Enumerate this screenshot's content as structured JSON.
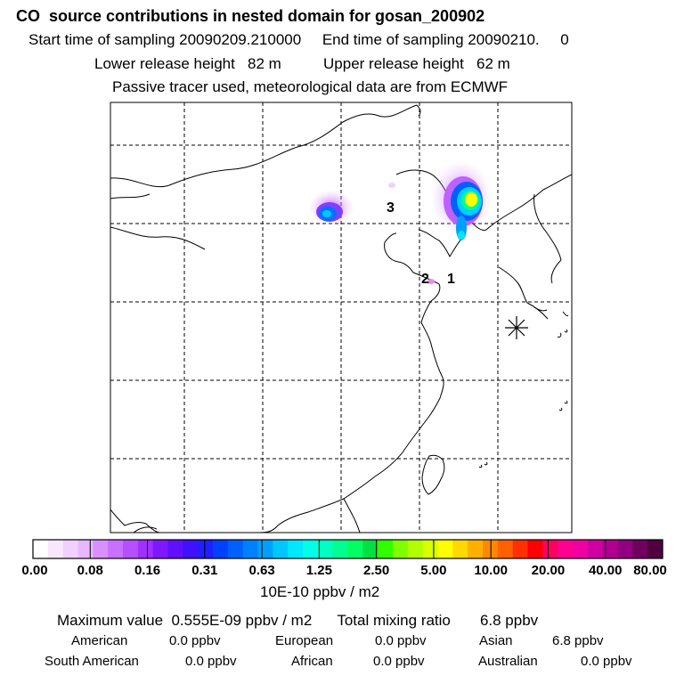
{
  "header": {
    "title": "CO  source contributions in nested domain for gosan_200902",
    "sampling": "Start time of sampling 20090209.210000     End time of sampling 20090210.     0",
    "release": "Lower release height   82 m          Upper release height   62 m",
    "tracer": "Passive tracer used, meteorological data are from ECMWF"
  },
  "map": {
    "labels": [
      "3",
      "2",
      "1"
    ],
    "receptor_icon": "asterisk-receptor-marker"
  },
  "colorbar": {
    "tick_labels": [
      "0.00",
      "0.08",
      "0.16",
      "0.31",
      "0.63",
      "1.25",
      "2.50",
      "5.00",
      "10.00",
      "20.00",
      "40.00",
      "80.00"
    ],
    "unit": "10E-10 ppbv / m2",
    "colors": [
      "#ffffff",
      "#f8e8ff",
      "#f0d0ff",
      "#e8b8ff",
      "#d890ff",
      "#c870ff",
      "#b450ff",
      "#a030ff",
      "#8018ff",
      "#6010ff",
      "#4010ff",
      "#2020ff",
      "#0040ff",
      "#0060ff",
      "#0080ff",
      "#00a0ff",
      "#00c8ff",
      "#00e8ff",
      "#00ffe8",
      "#00ffc0",
      "#00ff90",
      "#00ff60",
      "#00e040",
      "#30ff00",
      "#80ff00",
      "#b0ff00",
      "#d8ff00",
      "#ffff00",
      "#ffd800",
      "#ffb000",
      "#ff8800",
      "#ff6000",
      "#ff3000",
      "#ff0000",
      "#ff0060",
      "#ff0090",
      "#f000a0",
      "#d000a0",
      "#b00090",
      "#900080",
      "#700060",
      "#500040"
    ]
  },
  "summary": {
    "max_line": "Maximum value  0.555E-09 ppbv / m2      Total mixing ratio       6.8 ppbv",
    "row1": [
      {
        "region": "American",
        "value": "0.0 ppbv"
      },
      {
        "region": "European",
        "value": "0.0 ppbv"
      },
      {
        "region": "Asian",
        "value": "6.8 ppbv"
      }
    ],
    "row2": [
      {
        "region": "South American",
        "value": "0.0 ppbv"
      },
      {
        "region": "African",
        "value": "0.0 ppbv"
      },
      {
        "region": "Australian",
        "value": "0.0 ppbv"
      }
    ]
  }
}
